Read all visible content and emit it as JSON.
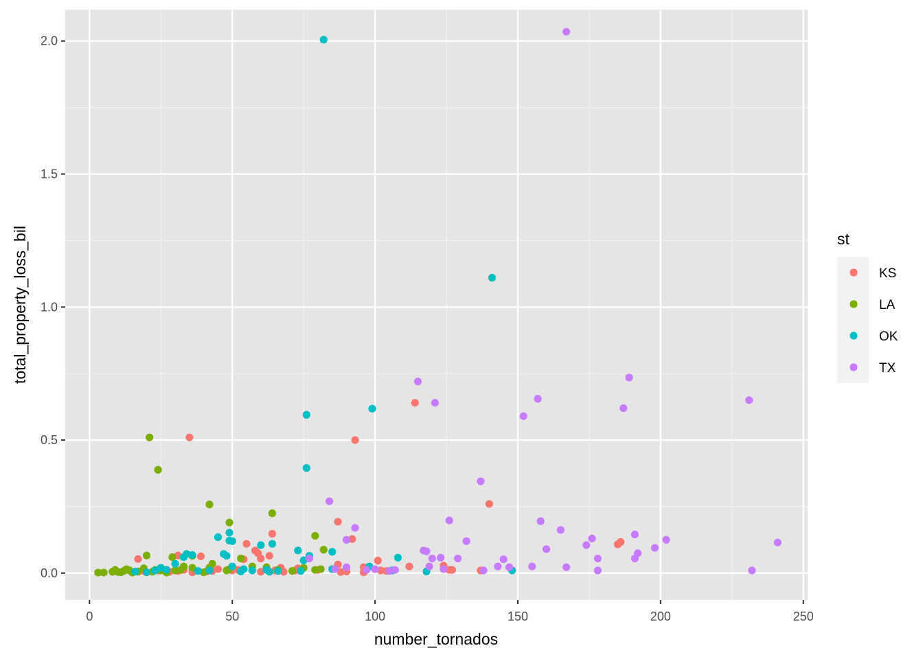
{
  "chart_data": {
    "type": "scatter",
    "title": "",
    "xlabel": "number_tornados",
    "ylabel": "total_property_loss_bil",
    "xlim": [
      -8.5,
      251.5
    ],
    "ylim": [
      -0.101,
      2.118
    ],
    "x_ticks": [
      0,
      50,
      100,
      150,
      200,
      250
    ],
    "x_tick_labels": [
      "0",
      "50",
      "100",
      "150",
      "200",
      "250"
    ],
    "y_ticks": [
      0.0,
      0.5,
      1.0,
      1.5,
      2.0
    ],
    "y_tick_labels": [
      "0.0",
      "0.5",
      "1.0",
      "1.5",
      "2.0"
    ],
    "grid": true,
    "legend": {
      "title": "st",
      "position": "right"
    },
    "panel_background": "#e5e5e5",
    "series": [
      {
        "name": "KS",
        "color": "#F8766D",
        "points": [
          [
            17,
            0.053
          ],
          [
            17,
            0.005
          ],
          [
            19,
            0.008
          ],
          [
            24,
            0.01
          ],
          [
            28,
            0.005
          ],
          [
            31,
            0.066
          ],
          [
            31,
            0.008
          ],
          [
            33,
            0.012
          ],
          [
            35,
            0.51
          ],
          [
            36,
            0.003
          ],
          [
            39,
            0.063
          ],
          [
            41,
            0.006
          ],
          [
            43,
            0.008
          ],
          [
            45,
            0.015
          ],
          [
            50,
            0.01
          ],
          [
            52,
            0.012
          ],
          [
            54,
            0.052
          ],
          [
            55,
            0.11
          ],
          [
            58,
            0.085
          ],
          [
            59,
            0.075
          ],
          [
            60,
            0.055
          ],
          [
            60,
            0.005
          ],
          [
            63,
            0.065
          ],
          [
            64,
            0.148
          ],
          [
            65,
            0.01
          ],
          [
            67,
            0.02
          ],
          [
            68,
            0.005
          ],
          [
            72,
            0.01
          ],
          [
            73,
            0.018
          ],
          [
            80,
            0.012
          ],
          [
            85,
            0.015
          ],
          [
            87,
            0.193
          ],
          [
            87,
            0.032
          ],
          [
            88,
            0.004
          ],
          [
            90,
            0.006
          ],
          [
            92,
            0.128
          ],
          [
            93,
            0.5
          ],
          [
            96,
            0.022
          ],
          [
            96,
            0.003
          ],
          [
            101,
            0.047
          ],
          [
            102,
            0.01
          ],
          [
            104,
            0.008
          ],
          [
            112,
            0.025
          ],
          [
            114,
            0.64
          ],
          [
            124,
            0.028
          ],
          [
            126,
            0.012
          ],
          [
            127,
            0.012
          ],
          [
            137,
            0.01
          ],
          [
            140,
            0.26
          ],
          [
            185,
            0.108
          ],
          [
            186,
            0.117
          ]
        ]
      },
      {
        "name": "LA",
        "color": "#7CAE00",
        "points": [
          [
            3,
            0.002
          ],
          [
            5,
            0.002
          ],
          [
            8,
            0.005
          ],
          [
            9,
            0.012
          ],
          [
            10,
            0.004
          ],
          [
            11,
            0.003
          ],
          [
            12,
            0.008
          ],
          [
            13,
            0.015
          ],
          [
            14,
            0.01
          ],
          [
            15,
            0.002
          ],
          [
            17,
            0.006
          ],
          [
            19,
            0.018
          ],
          [
            20,
            0.066
          ],
          [
            21,
            0.51
          ],
          [
            22,
            0.005
          ],
          [
            23,
            0.012
          ],
          [
            24,
            0.388
          ],
          [
            25,
            0.01
          ],
          [
            27,
            0.002
          ],
          [
            29,
            0.06
          ],
          [
            30,
            0.01
          ],
          [
            32,
            0.012
          ],
          [
            33,
            0.025
          ],
          [
            36,
            0.065
          ],
          [
            36,
            0.02
          ],
          [
            40,
            0.003
          ],
          [
            42,
            0.258
          ],
          [
            42,
            0.02
          ],
          [
            43,
            0.035
          ],
          [
            48,
            0.01
          ],
          [
            49,
            0.19
          ],
          [
            49,
            0.015
          ],
          [
            53,
            0.055
          ],
          [
            57,
            0.025
          ],
          [
            62,
            0.022
          ],
          [
            64,
            0.225
          ],
          [
            66,
            0.012
          ],
          [
            71,
            0.008
          ],
          [
            75,
            0.02
          ],
          [
            79,
            0.14
          ],
          [
            79,
            0.012
          ],
          [
            81,
            0.015
          ],
          [
            82,
            0.088
          ]
        ]
      },
      {
        "name": "OK",
        "color": "#00BFC4",
        "points": [
          [
            16,
            0.006
          ],
          [
            20,
            0.003
          ],
          [
            23,
            0.01
          ],
          [
            25,
            0.02
          ],
          [
            27,
            0.012
          ],
          [
            30,
            0.035
          ],
          [
            33,
            0.06
          ],
          [
            34,
            0.072
          ],
          [
            36,
            0.068
          ],
          [
            38,
            0.008
          ],
          [
            42,
            0.01
          ],
          [
            45,
            0.135
          ],
          [
            47,
            0.072
          ],
          [
            48,
            0.065
          ],
          [
            49,
            0.152
          ],
          [
            49,
            0.122
          ],
          [
            50,
            0.12
          ],
          [
            50,
            0.025
          ],
          [
            53,
            0.006
          ],
          [
            54,
            0.015
          ],
          [
            57,
            0.01
          ],
          [
            60,
            0.105
          ],
          [
            62,
            0.012
          ],
          [
            63,
            0.005
          ],
          [
            64,
            0.11
          ],
          [
            66,
            0.008
          ],
          [
            73,
            0.085
          ],
          [
            74,
            0.008
          ],
          [
            75,
            0.048
          ],
          [
            76,
            0.595
          ],
          [
            76,
            0.395
          ],
          [
            77,
            0.065
          ],
          [
            82,
            2.005
          ],
          [
            85,
            0.08
          ],
          [
            85,
            0.015
          ],
          [
            98,
            0.025
          ],
          [
            99,
            0.618
          ],
          [
            106,
            0.01
          ],
          [
            108,
            0.058
          ],
          [
            118,
            0.006
          ],
          [
            141,
            1.11
          ],
          [
            148,
            0.01
          ]
        ]
      },
      {
        "name": "TX",
        "color": "#C77CFF",
        "points": [
          [
            77,
            0.055
          ],
          [
            84,
            0.27
          ],
          [
            86,
            0.015
          ],
          [
            90,
            0.125
          ],
          [
            90,
            0.022
          ],
          [
            93,
            0.17
          ],
          [
            97,
            0.012
          ],
          [
            100,
            0.015
          ],
          [
            105,
            0.008
          ],
          [
            107,
            0.012
          ],
          [
            115,
            0.72
          ],
          [
            117,
            0.085
          ],
          [
            118,
            0.082
          ],
          [
            119,
            0.025
          ],
          [
            120,
            0.055
          ],
          [
            121,
            0.64
          ],
          [
            123,
            0.058
          ],
          [
            124,
            0.015
          ],
          [
            126,
            0.198
          ],
          [
            129,
            0.055
          ],
          [
            132,
            0.12
          ],
          [
            137,
            0.345
          ],
          [
            138,
            0.01
          ],
          [
            143,
            0.025
          ],
          [
            145,
            0.052
          ],
          [
            147,
            0.022
          ],
          [
            152,
            0.59
          ],
          [
            155,
            0.025
          ],
          [
            157,
            0.655
          ],
          [
            158,
            0.195
          ],
          [
            160,
            0.09
          ],
          [
            165,
            0.162
          ],
          [
            167,
            0.022
          ],
          [
            167,
            2.035
          ],
          [
            174,
            0.105
          ],
          [
            176,
            0.13
          ],
          [
            178,
            0.055
          ],
          [
            178,
            0.01
          ],
          [
            187,
            0.62
          ],
          [
            189,
            0.735
          ],
          [
            191,
            0.145
          ],
          [
            191,
            0.055
          ],
          [
            192,
            0.075
          ],
          [
            198,
            0.095
          ],
          [
            202,
            0.125
          ],
          [
            231,
            0.65
          ],
          [
            232,
            0.01
          ],
          [
            241,
            0.115
          ]
        ]
      }
    ]
  }
}
